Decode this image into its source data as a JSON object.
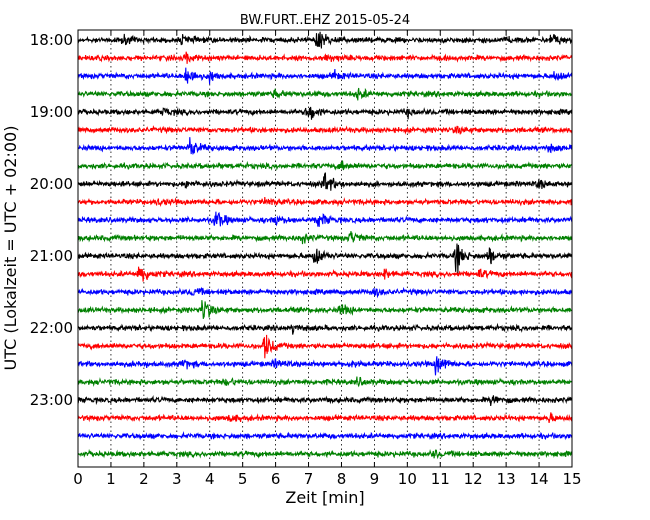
{
  "chart_data": {
    "type": "line",
    "title": "BW.FURT..EHZ 2015-05-24",
    "xlabel": "Zeit  [min]",
    "ylabel": "UTC (Lokalzeit = UTC + 02:00)",
    "xlim": [
      0,
      15
    ],
    "x_ticks": [
      0,
      1,
      2,
      3,
      4,
      5,
      6,
      7,
      8,
      9,
      10,
      11,
      12,
      13,
      14,
      15
    ],
    "y_tick_labels": [
      "18:00",
      "19:00",
      "20:00",
      "21:00",
      "22:00",
      "23:00"
    ],
    "row_minutes": 15,
    "color_cycle": [
      "#000000",
      "#ff0000",
      "#0000ff",
      "#008000"
    ],
    "grid": "vertical dotted lines at each minute",
    "series": [
      {
        "start": "18:00",
        "color": "#000000",
        "events": [
          {
            "t": 7.3,
            "amp": 1.0
          },
          {
            "t": 14.4,
            "amp": 0.6
          },
          {
            "t": 1.4,
            "amp": 0.3
          },
          {
            "t": 3.2,
            "amp": 0.35
          },
          {
            "t": 13.0,
            "amp": 0.3
          }
        ]
      },
      {
        "start": "18:15",
        "color": "#ff0000",
        "events": [
          {
            "t": 3.3,
            "amp": 0.3
          },
          {
            "t": 7.6,
            "amp": 0.3
          }
        ]
      },
      {
        "start": "18:30",
        "color": "#0000ff",
        "events": [
          {
            "t": 3.3,
            "amp": 1.0
          },
          {
            "t": 4.0,
            "amp": 0.35
          },
          {
            "t": 14.5,
            "amp": 0.45
          },
          {
            "t": 7.8,
            "amp": 0.3
          }
        ]
      },
      {
        "start": "18:45",
        "color": "#008000",
        "events": [
          {
            "t": 8.5,
            "amp": 0.4
          },
          {
            "t": 6.0,
            "amp": 0.25
          }
        ]
      },
      {
        "start": "19:00",
        "color": "#000000",
        "events": [
          {
            "t": 7.0,
            "amp": 0.8
          },
          {
            "t": 2.6,
            "amp": 0.25
          },
          {
            "t": 10.0,
            "amp": 0.25
          }
        ]
      },
      {
        "start": "19:15",
        "color": "#ff0000",
        "events": [
          {
            "t": 11.5,
            "amp": 0.25
          }
        ]
      },
      {
        "start": "19:30",
        "color": "#0000ff",
        "events": [
          {
            "t": 3.4,
            "amp": 0.75
          },
          {
            "t": 14.3,
            "amp": 0.25
          }
        ]
      },
      {
        "start": "19:45",
        "color": "#008000",
        "events": [
          {
            "t": 8.0,
            "amp": 0.3
          }
        ]
      },
      {
        "start": "20:00",
        "color": "#000000",
        "events": [
          {
            "t": 7.5,
            "amp": 0.9
          },
          {
            "t": 3.3,
            "amp": 0.3
          },
          {
            "t": 14.0,
            "amp": 0.3
          }
        ]
      },
      {
        "start": "20:15",
        "color": "#ff0000",
        "events": [
          {
            "t": 5.7,
            "amp": 0.3
          },
          {
            "t": 2.4,
            "amp": 0.2
          }
        ]
      },
      {
        "start": "20:30",
        "color": "#0000ff",
        "events": [
          {
            "t": 4.2,
            "amp": 0.75
          },
          {
            "t": 7.3,
            "amp": 0.7
          },
          {
            "t": 6.0,
            "amp": 0.35
          }
        ]
      },
      {
        "start": "20:45",
        "color": "#008000",
        "events": [
          {
            "t": 8.3,
            "amp": 0.5
          },
          {
            "t": 6.8,
            "amp": 0.3
          }
        ]
      },
      {
        "start": "21:00",
        "color": "#000000",
        "events": [
          {
            "t": 7.2,
            "amp": 0.85
          },
          {
            "t": 11.5,
            "amp": 1.1
          },
          {
            "t": 12.5,
            "amp": 0.6
          }
        ]
      },
      {
        "start": "21:15",
        "color": "#ff0000",
        "events": [
          {
            "t": 1.9,
            "amp": 1.0
          },
          {
            "t": 9.3,
            "amp": 0.4
          },
          {
            "t": 12.2,
            "amp": 0.3
          }
        ]
      },
      {
        "start": "21:30",
        "color": "#0000ff",
        "events": [
          {
            "t": 3.5,
            "amp": 0.3
          },
          {
            "t": 9.0,
            "amp": 0.3
          }
        ]
      },
      {
        "start": "21:45",
        "color": "#008000",
        "events": [
          {
            "t": 3.8,
            "amp": 1.0
          },
          {
            "t": 8.0,
            "amp": 0.45
          }
        ]
      },
      {
        "start": "22:00",
        "color": "#000000",
        "events": [
          {
            "t": 6.5,
            "amp": 0.35
          }
        ]
      },
      {
        "start": "22:15",
        "color": "#ff0000",
        "events": [
          {
            "t": 5.7,
            "amp": 1.0
          }
        ]
      },
      {
        "start": "22:30",
        "color": "#0000ff",
        "events": [
          {
            "t": 10.9,
            "amp": 0.9
          },
          {
            "t": 3.2,
            "amp": 0.35
          },
          {
            "t": 6.0,
            "amp": 0.3
          },
          {
            "t": 8.3,
            "amp": 0.3
          },
          {
            "t": 1.8,
            "amp": 0.25
          }
        ]
      },
      {
        "start": "22:45",
        "color": "#008000",
        "events": [
          {
            "t": 4.5,
            "amp": 0.3
          },
          {
            "t": 8.5,
            "amp": 0.25
          }
        ]
      },
      {
        "start": "23:00",
        "color": "#000000",
        "events": [
          {
            "t": 12.6,
            "amp": 0.5
          }
        ]
      },
      {
        "start": "23:15",
        "color": "#ff0000",
        "events": [
          {
            "t": 4.6,
            "amp": 0.3
          },
          {
            "t": 14.3,
            "amp": 0.3
          }
        ]
      },
      {
        "start": "23:30",
        "color": "#0000ff",
        "events": []
      },
      {
        "start": "23:45",
        "color": "#008000",
        "events": [
          {
            "t": 10.8,
            "amp": 0.25
          }
        ]
      }
    ]
  }
}
